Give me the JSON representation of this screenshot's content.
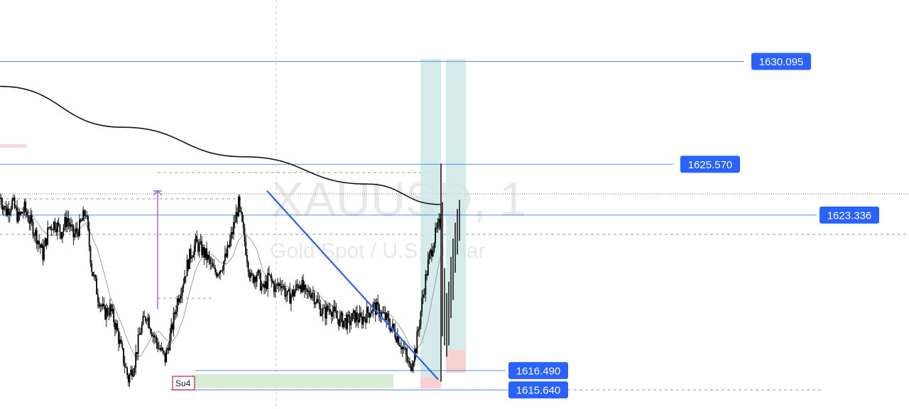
{
  "watermark": {
    "symbol": "XAUUSD, 1",
    "description": "Gold Spot / U.S. Dollar"
  },
  "chart_data": {
    "type": "candlestick",
    "symbol": "XAUUSD",
    "timeframe": "1",
    "ylim": [
      1614.8,
      1632.8
    ],
    "grid": false,
    "colors": {
      "candle": "#000000",
      "moving_average_long": "#131722",
      "moving_average_short": "#9e9e9e",
      "price_line": "#5b8def",
      "price_tag_bg": "#2962ff",
      "trendline": "#2f5fe8",
      "range_arrow": "#9c6ad6",
      "reward_zone": "#cde8e6",
      "risk_zone": "#f9c9c9",
      "support_zone": "#d7ecd3",
      "su_box_border": "#c2185b"
    },
    "price_levels": [
      {
        "name": "level-1630",
        "label": "1630.095",
        "value": 1630.095
      },
      {
        "name": "level-1625",
        "label": "1625.570",
        "value": 1625.57
      },
      {
        "name": "level-1623",
        "label": "1623.336",
        "value": 1623.336
      },
      {
        "name": "level-1616-49",
        "label": "1616.490",
        "value": 1616.49
      },
      {
        "name": "level-1615-64",
        "label": "1615.640",
        "value": 1615.64
      }
    ],
    "close_series": [
      1624.1,
      1623.5,
      1623.9,
      1623.2,
      1623.6,
      1623.0,
      1622.4,
      1621.6,
      1622.8,
      1623.0,
      1622.6,
      1623.2,
      1622.4,
      1622.8,
      1623.5,
      1621.0,
      1619.8,
      1619.0,
      1619.2,
      1618.4,
      1617.2,
      1616.1,
      1616.9,
      1618.3,
      1619.0,
      1618.1,
      1617.5,
      1617.0,
      1618.2,
      1619.6,
      1620.5,
      1621.5,
      1622.1,
      1621.8,
      1621.4,
      1620.8,
      1621.0,
      1621.5,
      1622.6,
      1623.8,
      1622.2,
      1620.5,
      1620.8,
      1620.0,
      1620.6,
      1620.1,
      1620.4,
      1619.7,
      1619.9,
      1620.4,
      1619.8,
      1620.0,
      1619.4,
      1619.0,
      1619.3,
      1618.8,
      1618.7,
      1618.6,
      1618.9,
      1618.7,
      1619.0,
      1619.3,
      1619.1,
      1618.8,
      1618.4,
      1618.0,
      1617.4,
      1616.6,
      1617.5,
      1619.5,
      1621.2,
      1622.3,
      1623.0
    ],
    "moving_average_long": {
      "x": [
        0,
        20,
        40,
        60,
        72
      ],
      "y": [
        1629.0,
        1627.2,
        1625.9,
        1624.7,
        1623.8
      ]
    },
    "trendline": {
      "from_price": 1624.4,
      "to_price": 1616.1
    },
    "range_measure": {
      "high": 1624.4,
      "low": 1619.2
    },
    "positions": [
      {
        "name": "long-position-1",
        "entry": 1616.2,
        "target": 1630.2,
        "stop": 1615.7
      },
      {
        "name": "long-position-2",
        "entry": 1617.4,
        "target": 1630.2,
        "stop": 1616.4
      }
    ],
    "session_label": "Su4"
  }
}
